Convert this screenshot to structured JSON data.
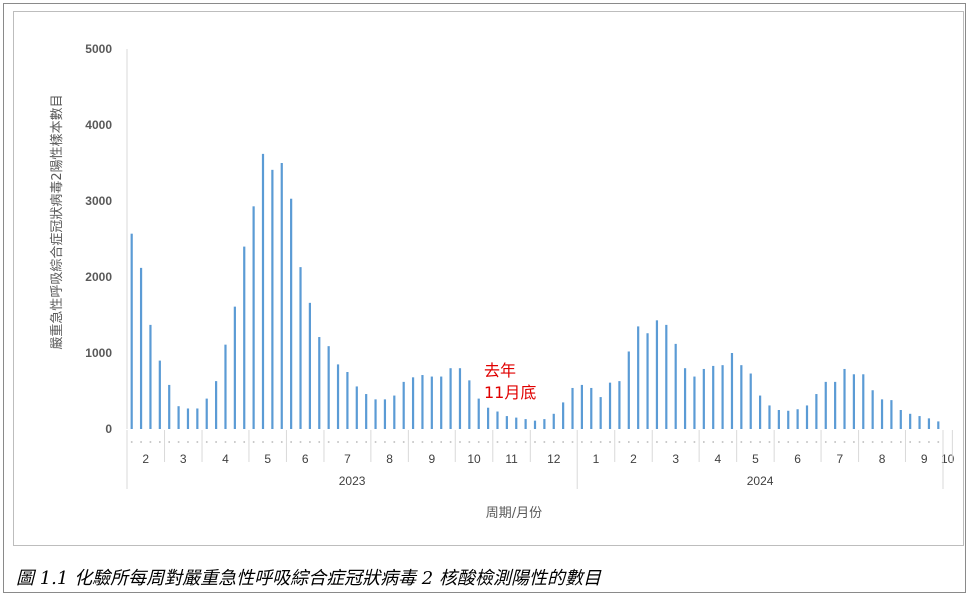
{
  "caption": "圖 1.1 化驗所每周對嚴重急性呼吸綜合症冠狀病毒 2 核酸檢測陽性的數目",
  "chart_data": {
    "type": "bar",
    "xlabel": "周期/月份",
    "ylabel": "嚴重急性呼吸綜合症冠狀病毒2陽性樣本數目",
    "ylim": [
      0,
      5000
    ],
    "yticks": [
      0,
      1000,
      2000,
      3000,
      4000,
      5000
    ],
    "bar_color": "#5b9bd5",
    "annotation": {
      "lines": [
        "去年",
        "11月底"
      ],
      "color": "#e00000"
    },
    "years": [
      "2023",
      "2024"
    ],
    "months": [
      {
        "label": "2",
        "weeks": 4
      },
      {
        "label": "3",
        "weeks": 4
      },
      {
        "label": "4",
        "weeks": 5
      },
      {
        "label": "5",
        "weeks": 4
      },
      {
        "label": "6",
        "weeks": 4
      },
      {
        "label": "7",
        "weeks": 5
      },
      {
        "label": "8",
        "weeks": 4
      },
      {
        "label": "9",
        "weeks": 5
      },
      {
        "label": "10",
        "weeks": 4
      },
      {
        "label": "11",
        "weeks": 4
      },
      {
        "label": "12",
        "weeks": 5
      },
      {
        "label": "1",
        "weeks": 4
      },
      {
        "label": "2",
        "weeks": 4
      },
      {
        "label": "3",
        "weeks": 5
      },
      {
        "label": "4",
        "weeks": 4
      },
      {
        "label": "5",
        "weeks": 4
      },
      {
        "label": "6",
        "weeks": 5
      },
      {
        "label": "7",
        "weeks": 4
      },
      {
        "label": "8",
        "weeks": 5
      },
      {
        "label": "9",
        "weeks": 4
      },
      {
        "label": "10",
        "weeks": 1
      }
    ],
    "values": [
      2570,
      2120,
      1370,
      900,
      580,
      300,
      270,
      270,
      400,
      630,
      1110,
      1610,
      2400,
      2930,
      3620,
      3410,
      3500,
      3030,
      2130,
      1660,
      1210,
      1090,
      850,
      750,
      560,
      460,
      390,
      390,
      440,
      620,
      680,
      710,
      690,
      690,
      800,
      800,
      640,
      400,
      280,
      230,
      170,
      150,
      130,
      110,
      130,
      200,
      350,
      540,
      580,
      540,
      420,
      610,
      630,
      1020,
      1350,
      1260,
      1430,
      1370,
      1120,
      800,
      690,
      790,
      830,
      840,
      1000,
      840,
      730,
      440,
      310,
      250,
      240,
      260,
      310,
      460,
      620,
      620,
      790,
      720,
      720,
      510,
      390,
      380,
      250,
      200,
      170,
      140,
      100
    ]
  }
}
